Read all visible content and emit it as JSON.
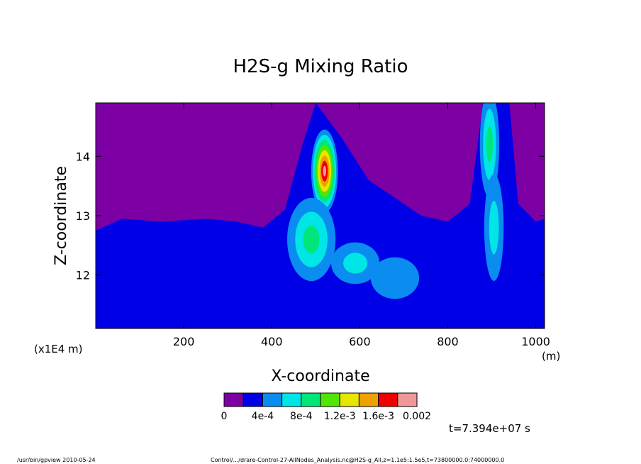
{
  "chart_data": {
    "type": "heatmap",
    "title": "H2S-g Mixing Ratio",
    "xlabel": "X-coordinate",
    "ylabel": "Z-coordinate",
    "x_unit": "(m)",
    "y_unit": "(x1E4 m)",
    "xlim": [
      0,
      1020
    ],
    "ylim": [
      11.1,
      14.9
    ],
    "x_ticks": [
      200,
      400,
      600,
      800,
      1000
    ],
    "y_ticks": [
      12,
      13,
      14
    ],
    "legend": {
      "placement": "bottom",
      "levels": [
        0,
        0.0002,
        0.0004,
        0.0006,
        0.0008,
        0.001,
        0.0012,
        0.0014,
        0.0016,
        0.0018,
        0.002
      ],
      "labels": [
        "0",
        "4e-4",
        "8e-4",
        "1.2e-3",
        "1.6e-3",
        "0.002"
      ],
      "label_levels": [
        0,
        0.0004,
        0.0008,
        0.0012,
        0.0016,
        0.002
      ],
      "colors": [
        "#7c00a4",
        "#0000e6",
        "#0a8cf0",
        "#00e6e6",
        "#00e678",
        "#50e600",
        "#e6e600",
        "#f0a000",
        "#f00000",
        "#f09898"
      ]
    },
    "background_level_top": 0,
    "background_level_bottom": 0.0002,
    "plumes": [
      {
        "x": 520,
        "z": 13.75,
        "peak": 0.0018
      },
      {
        "x": 490,
        "z": 12.6,
        "peak": 0.0008
      },
      {
        "x": 590,
        "z": 12.2,
        "peak": 0.0006
      },
      {
        "x": 680,
        "z": 11.95,
        "peak": 0.0005
      },
      {
        "x": 895,
        "z": 14.2,
        "peak": 0.0009
      },
      {
        "x": 905,
        "z": 12.8,
        "peak": 0.0007
      }
    ],
    "time_label": "t=7.394e+07 s"
  },
  "footer": {
    "left": "/usr/bin/gpview  2010-05-24",
    "right": "Control/.../drare-Control-27-AllNodes_Analysis.nc@H2S-g_All,z=1.1e5:1.5e5,t=73800000.0:74000000.0"
  }
}
